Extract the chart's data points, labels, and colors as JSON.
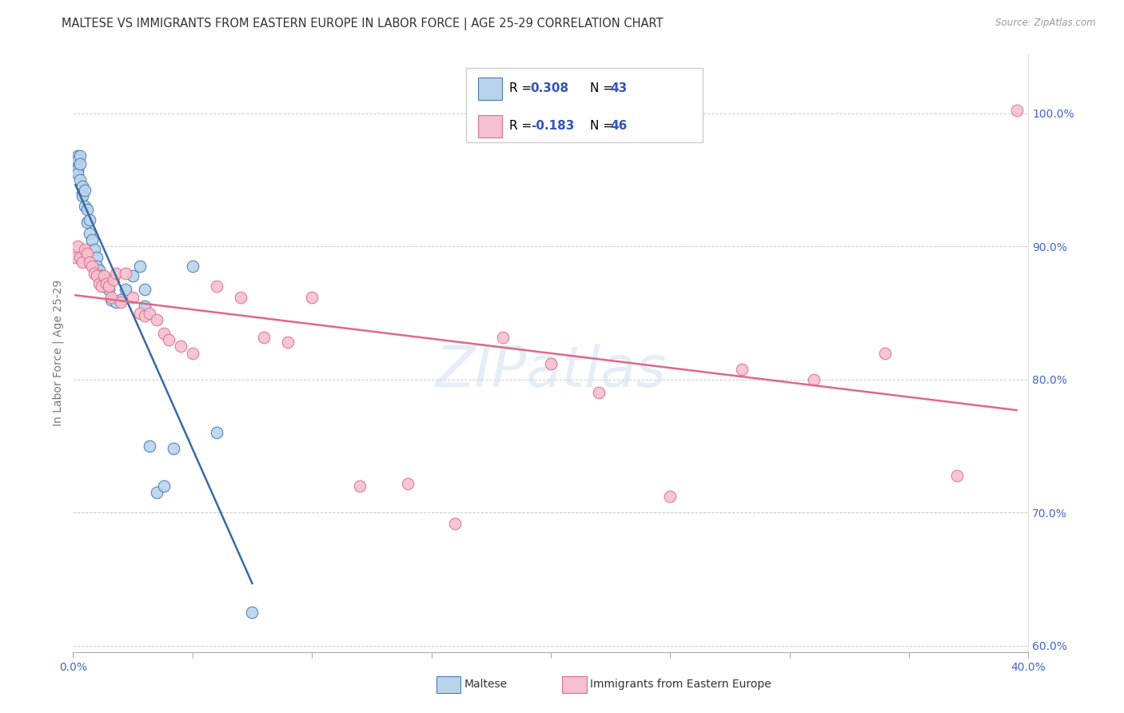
{
  "title": "MALTESE VS IMMIGRANTS FROM EASTERN EUROPE IN LABOR FORCE | AGE 25-29 CORRELATION CHART",
  "source": "Source: ZipAtlas.com",
  "ylabel": "In Labor Force | Age 25-29",
  "xlim": [
    0.0,
    0.4
  ],
  "ylim": [
    0.595,
    1.045
  ],
  "xticks": [
    0.0,
    0.05,
    0.1,
    0.15,
    0.2,
    0.25,
    0.3,
    0.35,
    0.4
  ],
  "xtick_labels": [
    "0.0%",
    "",
    "",
    "",
    "",
    "",
    "",
    "",
    "40.0%"
  ],
  "ytick_vals": [
    0.6,
    0.7,
    0.8,
    0.9,
    1.0
  ],
  "ytick_labels": [
    "60.0%",
    "70.0%",
    "80.0%",
    "90.0%",
    "100.0%"
  ],
  "blue_fill": "#b8d4ea",
  "blue_edge": "#4a7ab5",
  "pink_fill": "#f5c0d0",
  "pink_edge": "#e0708a",
  "blue_line": "#3a6aa0",
  "pink_line": "#e06888",
  "blue_R": 0.308,
  "blue_N": 43,
  "pink_R": -0.183,
  "pink_N": 46,
  "legend_color": "#3355bb",
  "grid_color": "#cccccc",
  "axis_tick_color": "#4466cc",
  "title_color": "#333333",
  "source_color": "#999999",
  "ylabel_color": "#777777",
  "watermark": "ZIPatlas",
  "blue_x": [
    0.001,
    0.001,
    0.001,
    0.002,
    0.002,
    0.002,
    0.002,
    0.003,
    0.003,
    0.003,
    0.004,
    0.004,
    0.004,
    0.005,
    0.005,
    0.006,
    0.006,
    0.007,
    0.007,
    0.008,
    0.009,
    0.01,
    0.01,
    0.011,
    0.012,
    0.013,
    0.014,
    0.015,
    0.016,
    0.018,
    0.02,
    0.022,
    0.025,
    0.028,
    0.03,
    0.03,
    0.032,
    0.035,
    0.038,
    0.042,
    0.05,
    0.06,
    0.075
  ],
  "blue_y": [
    0.96,
    0.965,
    0.958,
    0.968,
    0.965,
    0.958,
    0.955,
    0.968,
    0.962,
    0.95,
    0.945,
    0.94,
    0.938,
    0.942,
    0.93,
    0.928,
    0.918,
    0.92,
    0.91,
    0.905,
    0.898,
    0.892,
    0.885,
    0.882,
    0.878,
    0.87,
    0.875,
    0.868,
    0.86,
    0.858,
    0.86,
    0.868,
    0.878,
    0.885,
    0.868,
    0.855,
    0.75,
    0.715,
    0.72,
    0.748,
    0.885,
    0.76,
    0.625
  ],
  "pink_x": [
    0.001,
    0.002,
    0.003,
    0.004,
    0.005,
    0.006,
    0.007,
    0.008,
    0.009,
    0.01,
    0.011,
    0.012,
    0.013,
    0.014,
    0.015,
    0.016,
    0.017,
    0.018,
    0.02,
    0.022,
    0.025,
    0.028,
    0.03,
    0.032,
    0.035,
    0.038,
    0.04,
    0.045,
    0.05,
    0.06,
    0.07,
    0.08,
    0.09,
    0.1,
    0.12,
    0.14,
    0.16,
    0.18,
    0.2,
    0.22,
    0.25,
    0.28,
    0.31,
    0.34,
    0.37,
    0.395
  ],
  "pink_y": [
    0.892,
    0.9,
    0.892,
    0.888,
    0.898,
    0.895,
    0.888,
    0.885,
    0.88,
    0.878,
    0.872,
    0.87,
    0.878,
    0.872,
    0.87,
    0.862,
    0.875,
    0.88,
    0.858,
    0.88,
    0.862,
    0.85,
    0.848,
    0.85,
    0.845,
    0.835,
    0.83,
    0.825,
    0.82,
    0.87,
    0.862,
    0.832,
    0.828,
    0.862,
    0.72,
    0.722,
    0.692,
    0.832,
    0.812,
    0.79,
    0.712,
    0.808,
    0.8,
    0.82,
    0.728,
    1.002
  ],
  "blue_trend_x": [
    0.001,
    0.075
  ],
  "pink_trend_x": [
    0.001,
    0.395
  ]
}
